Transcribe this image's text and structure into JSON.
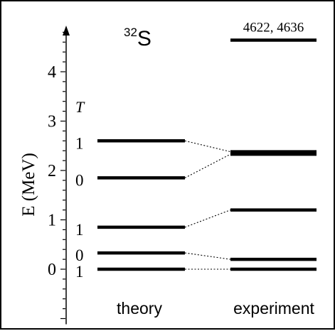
{
  "chart_data": {
    "type": "level-scheme",
    "title_mass": "32",
    "title_symbol": "S",
    "ylabel": "E (MeV)",
    "y_ticks": [
      0,
      1,
      2,
      3,
      4
    ],
    "ylim": [
      -1.0,
      4.9
    ],
    "isospin_header": "T",
    "columns": [
      {
        "name": "theory",
        "levels": [
          {
            "energy": 0.0,
            "T": "1"
          },
          {
            "energy": 0.33,
            "T": "0"
          },
          {
            "energy": 0.85,
            "T": "1"
          },
          {
            "energy": 1.85,
            "T": "0"
          },
          {
            "energy": 2.6,
            "T": "1"
          }
        ]
      },
      {
        "name": "experiment",
        "levels": [
          {
            "energy": 0.0
          },
          {
            "energy": 0.2
          },
          {
            "energy": 1.2
          },
          {
            "energy": 2.33
          },
          {
            "energy": 2.38
          },
          {
            "energy": 4.64,
            "label": "4622, 4636"
          }
        ]
      }
    ],
    "links": [
      {
        "theory": 0,
        "experiment": 0
      },
      {
        "theory": 1,
        "experiment": 1
      },
      {
        "theory": 2,
        "experiment": 2
      },
      {
        "theory": 3,
        "experiment": 3
      },
      {
        "theory": 4,
        "experiment": 4
      }
    ]
  }
}
